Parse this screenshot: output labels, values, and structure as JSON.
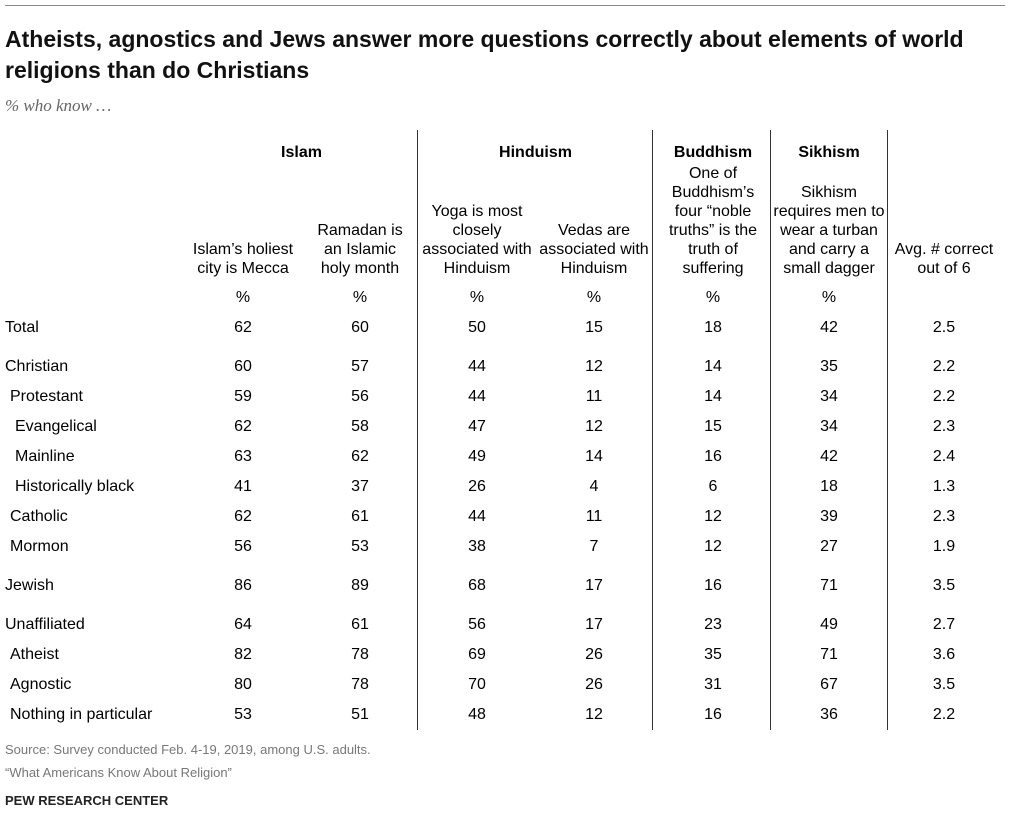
{
  "header": {
    "title": "Atheists, agnostics and Jews answer more questions correctly about elements of world religions than do Christians",
    "subtitle": "% who know …"
  },
  "table": {
    "groups": [
      {
        "name": "Islam",
        "columns": [
          {
            "header": "Islam’s holiest city is Mecca",
            "unit": "%"
          },
          {
            "header": "Ramadan is an Islamic holy month",
            "unit": "%"
          }
        ]
      },
      {
        "name": "Hinduism",
        "columns": [
          {
            "header": "Yoga is most closely associated with Hinduism",
            "unit": "%"
          },
          {
            "header": "Vedas are associated with Hinduism",
            "unit": "%"
          }
        ]
      },
      {
        "name": "Buddhism",
        "columns": [
          {
            "header": "One of Buddhism’s four “noble truths” is the truth of suffering",
            "unit": "%"
          }
        ]
      },
      {
        "name": "Sikhism",
        "columns": [
          {
            "header": "Sikhism requires men to wear a turban and carry a small dagger",
            "unit": "%"
          }
        ]
      }
    ],
    "summary_column": {
      "header": "Avg. # correct out of 6"
    },
    "rows": [
      {
        "label": "Total",
        "values": [
          62,
          60,
          50,
          15,
          18,
          42,
          2.5
        ]
      },
      {
        "label": "Christian",
        "values": [
          60,
          57,
          44,
          12,
          14,
          35,
          2.2
        ],
        "children": [
          {
            "label": "Protestant",
            "values": [
              59,
              56,
              44,
              11,
              14,
              34,
              2.2
            ],
            "children": [
              {
                "label": "Evangelical",
                "values": [
                  62,
                  58,
                  47,
                  12,
                  15,
                  34,
                  2.3
                ]
              },
              {
                "label": "Mainline",
                "values": [
                  63,
                  62,
                  49,
                  14,
                  16,
                  42,
                  2.4
                ]
              },
              {
                "label": "Historically black",
                "values": [
                  41,
                  37,
                  26,
                  4,
                  6,
                  18,
                  1.3
                ]
              }
            ]
          },
          {
            "label": "Catholic",
            "values": [
              62,
              61,
              44,
              11,
              12,
              39,
              2.3
            ]
          },
          {
            "label": "Mormon",
            "values": [
              56,
              53,
              38,
              7,
              12,
              27,
              1.9
            ]
          }
        ]
      },
      {
        "label": "Jewish",
        "values": [
          86,
          89,
          68,
          17,
          16,
          71,
          3.5
        ]
      },
      {
        "label": "Unaffiliated",
        "values": [
          64,
          61,
          56,
          17,
          23,
          49,
          2.7
        ],
        "children": [
          {
            "label": "Atheist",
            "values": [
              82,
              78,
              69,
              26,
              35,
              71,
              3.6
            ]
          },
          {
            "label": "Agnostic",
            "values": [
              80,
              78,
              70,
              26,
              31,
              67,
              3.5
            ]
          },
          {
            "label": "Nothing in particular",
            "values": [
              53,
              51,
              48,
              12,
              16,
              36,
              2.2
            ]
          }
        ]
      }
    ]
  },
  "footer": {
    "source": "Source: Survey conducted Feb. 4-19, 2019, among U.S. adults.",
    "report": "“What Americans Know About Religion”",
    "brand": "PEW RESEARCH CENTER"
  }
}
